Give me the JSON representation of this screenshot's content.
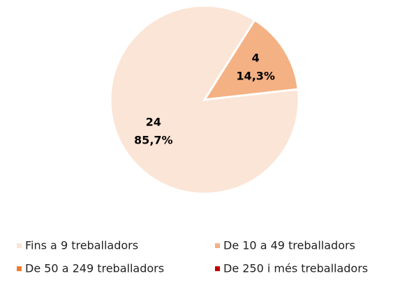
{
  "chart_data": {
    "type": "pie",
    "categories": [
      "Fins a 9 treballadors",
      "De 10 a 49 treballadors",
      "De 50 a 249 treballadors",
      "De 250 i més treballadors"
    ],
    "values": [
      24,
      4,
      0,
      0
    ],
    "percent_labels": [
      "85,7%",
      "14,3%",
      null,
      null
    ],
    "colors": [
      "#fbe5d6",
      "#f4b183",
      "#ed7d31",
      "#c00000"
    ],
    "legend": "bottom"
  }
}
